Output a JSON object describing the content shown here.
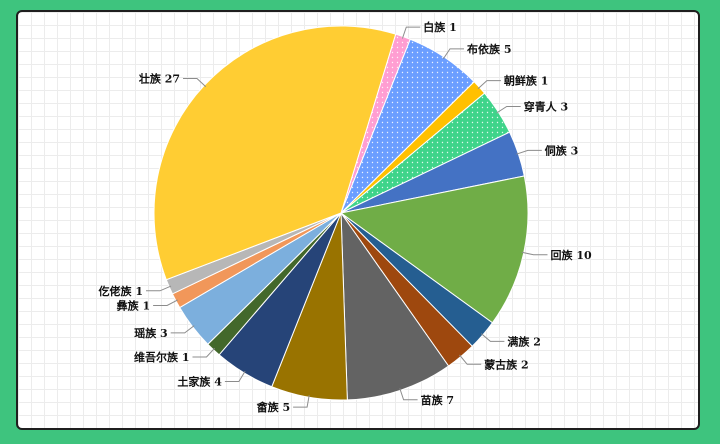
{
  "chart_data": {
    "type": "pie",
    "title": "",
    "start_angle_deg": 17,
    "slices": [
      {
        "label": "白族",
        "value": 1,
        "color": "#ff9ed2",
        "pattern": "dots"
      },
      {
        "label": "布依族",
        "value": 5,
        "color": "#6b9eff",
        "pattern": "dots"
      },
      {
        "label": "朝鲜族",
        "value": 1,
        "color": "#ffc000",
        "pattern": null
      },
      {
        "label": "穿青人",
        "value": 3,
        "color": "#3fd48a",
        "pattern": "dots"
      },
      {
        "label": "侗族",
        "value": 3,
        "color": "#4472c4",
        "pattern": null
      },
      {
        "label": "回族",
        "value": 10,
        "color": "#70ad47",
        "pattern": null
      },
      {
        "label": "满族",
        "value": 2,
        "color": "#255e91",
        "pattern": null
      },
      {
        "label": "蒙古族",
        "value": 2,
        "color": "#9e480e",
        "pattern": null
      },
      {
        "label": "苗族",
        "value": 7,
        "color": "#636363",
        "pattern": null
      },
      {
        "label": "畲族",
        "value": 5,
        "color": "#997300",
        "pattern": null
      },
      {
        "label": "土家族",
        "value": 4,
        "color": "#264478",
        "pattern": null
      },
      {
        "label": "维吾尔族",
        "value": 1,
        "color": "#43682b",
        "pattern": null
      },
      {
        "label": "瑶族",
        "value": 3,
        "color": "#7cafdd",
        "pattern": null
      },
      {
        "label": "彝族",
        "value": 1,
        "color": "#f1975a",
        "pattern": null
      },
      {
        "label": "仡佬族",
        "value": 1,
        "color": "#b7b7b7",
        "pattern": null
      },
      {
        "label": "壮族",
        "value": 27,
        "color": "#ffcd33",
        "pattern": null
      }
    ]
  }
}
